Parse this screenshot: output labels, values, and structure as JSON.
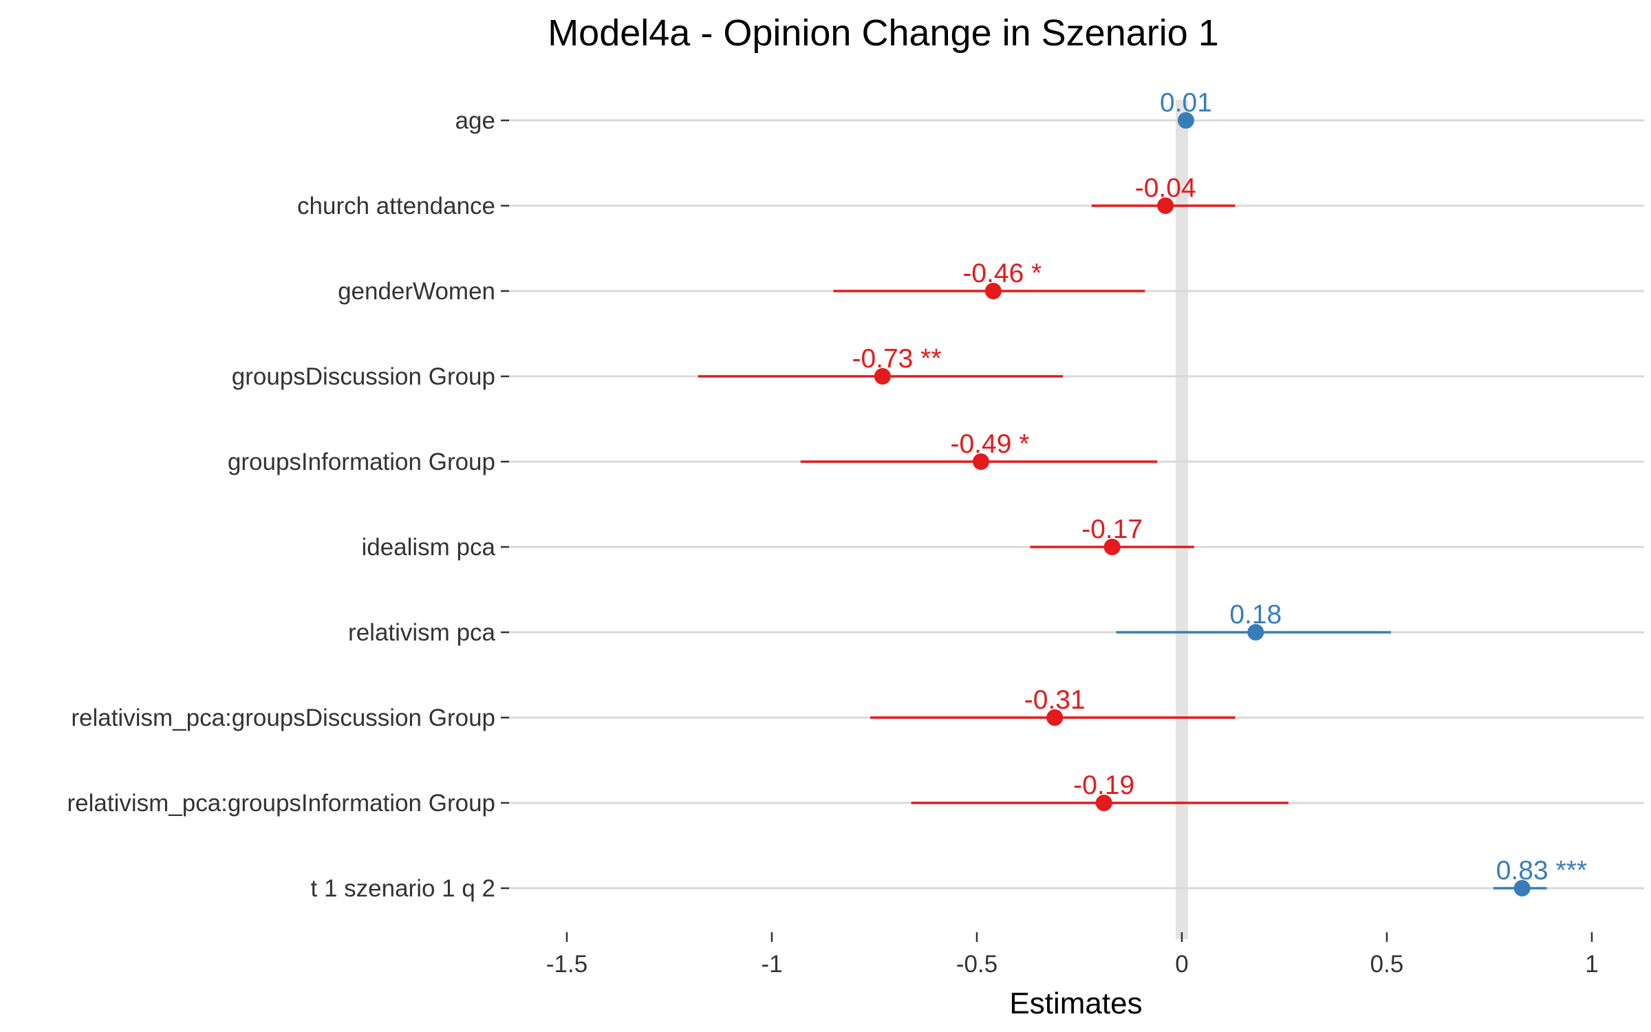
{
  "chart_data": {
    "type": "forest",
    "title": "Model4a - Opinion Change in Szenario 1",
    "xlabel": "Estimates",
    "ylabel": "",
    "xlim": [
      -1.6,
      1.1
    ],
    "xticks": [
      -1.5,
      -1,
      -0.5,
      0,
      0.5,
      1
    ],
    "xtick_labels": [
      "-1.5",
      "-1",
      "-0.5",
      "0",
      "0.5",
      "1"
    ],
    "grid": true,
    "colors": {
      "positive": "#377EB8",
      "negative": "#E41A1C",
      "zero_line": "#E3E3E3",
      "grid": "#D9D9D9"
    },
    "terms": [
      {
        "label": "age",
        "estimate": 0.01,
        "ci": [
          -0.01,
          0.03
        ],
        "text": "0.01",
        "sign": "positive"
      },
      {
        "label": "church attendance",
        "estimate": -0.04,
        "ci": [
          -0.22,
          0.13
        ],
        "text": "-0.04",
        "sign": "negative"
      },
      {
        "label": "genderWomen",
        "estimate": -0.46,
        "ci": [
          -0.85,
          -0.09
        ],
        "text": "-0.46 *",
        "sign": "negative"
      },
      {
        "label": "groupsDiscussion Group",
        "estimate": -0.73,
        "ci": [
          -1.18,
          -0.29
        ],
        "text": "-0.73 **",
        "sign": "negative"
      },
      {
        "label": "groupsInformation Group",
        "estimate": -0.49,
        "ci": [
          -0.93,
          -0.06
        ],
        "text": "-0.49 *",
        "sign": "negative"
      },
      {
        "label": "idealism pca",
        "estimate": -0.17,
        "ci": [
          -0.37,
          0.03
        ],
        "text": "-0.17",
        "sign": "negative"
      },
      {
        "label": "relativism pca",
        "estimate": 0.18,
        "ci": [
          -0.16,
          0.51
        ],
        "text": "0.18",
        "sign": "positive"
      },
      {
        "label": "relativism_pca:groupsDiscussion Group",
        "estimate": -0.31,
        "ci": [
          -0.76,
          0.13
        ],
        "text": "-0.31",
        "sign": "negative"
      },
      {
        "label": "relativism_pca:groupsInformation Group",
        "estimate": -0.19,
        "ci": [
          -0.66,
          0.26
        ],
        "text": "-0.19",
        "sign": "negative"
      },
      {
        "label": "t 1 szenario 1 q 2",
        "estimate": 0.83,
        "ci": [
          0.76,
          0.89
        ],
        "text": "0.83 ***",
        "sign": "positive"
      }
    ]
  }
}
